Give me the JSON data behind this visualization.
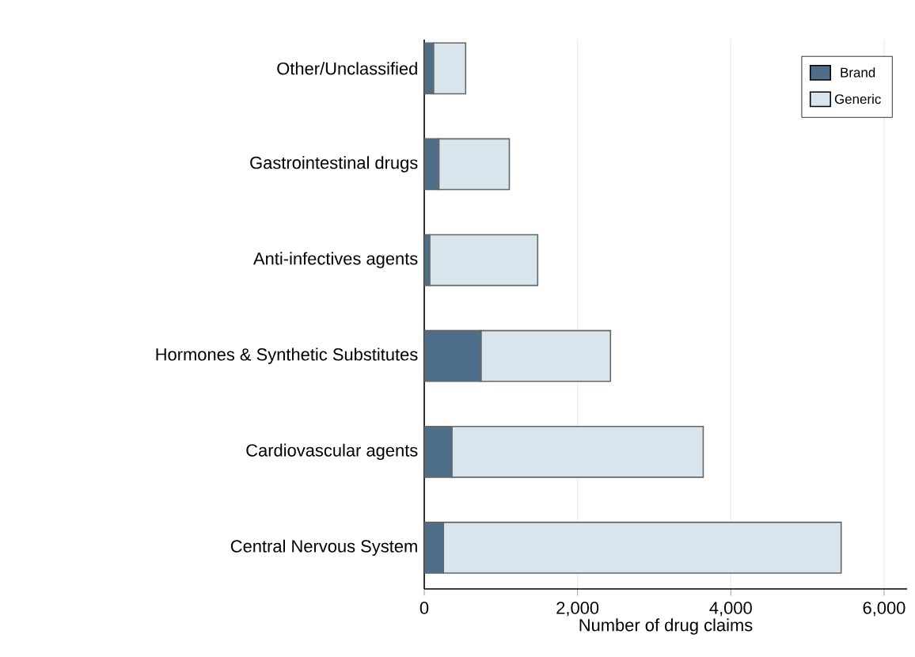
{
  "chart_data": {
    "type": "bar",
    "orientation": "horizontal",
    "stacked": true,
    "categories": [
      "Other/Unclassified",
      "Gastrointestinal drugs",
      "Anti-infectives agents",
      "Hormones & Synthetic Substitutes",
      "Cardiovascular agents",
      "Central Nervous System"
    ],
    "series": [
      {
        "name": "Brand",
        "color": "#4e6e8a",
        "values": [
          120,
          190,
          70,
          740,
          360,
          250
        ]
      },
      {
        "name": "Generic",
        "color": "#d9e5ec",
        "values": [
          420,
          920,
          1410,
          1690,
          3280,
          5190
        ]
      }
    ],
    "xlabel": "Number of drug claims",
    "xlim": [
      0,
      6300
    ],
    "xticks": [
      {
        "value": 0,
        "label": "0"
      },
      {
        "value": 2000,
        "label": "2,000"
      },
      {
        "value": 4000,
        "label": "4,000"
      },
      {
        "value": 6000,
        "label": "6,000"
      }
    ],
    "grid": "x",
    "legend": "top right"
  }
}
